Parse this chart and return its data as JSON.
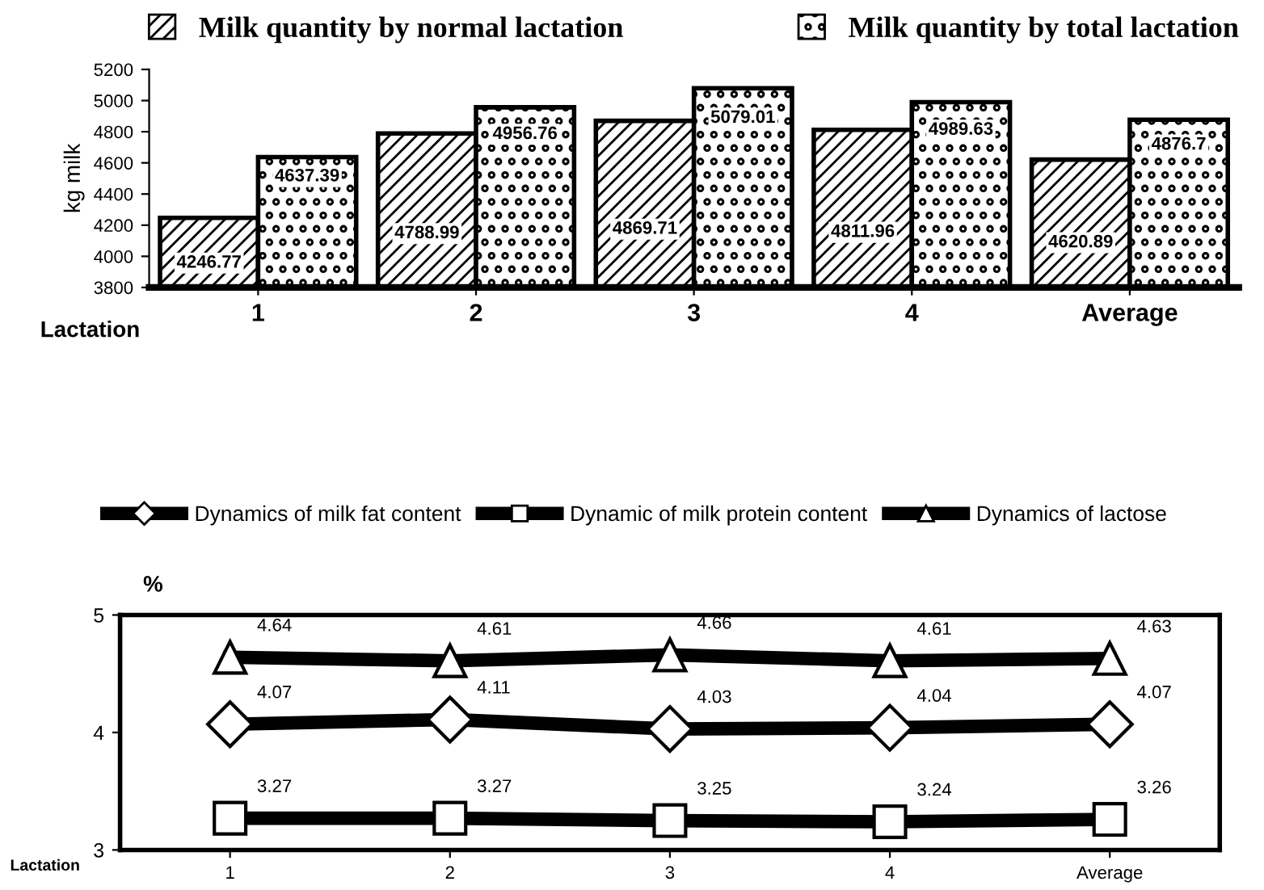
{
  "chart_data": [
    {
      "type": "bar",
      "categories": [
        "1",
        "2",
        "3",
        "4",
        "Average"
      ],
      "xlabel": "Lactation",
      "ylabel": "kg milk",
      "series": [
        {
          "name": "Milk quantity by normal lactation",
          "color": "#000000",
          "values": [
            4246.77,
            4788.99,
            4869.71,
            4811.96,
            4620.89
          ]
        },
        {
          "name": "Milk quantity by total lactation",
          "color": "#000000",
          "values": [
            4637.39,
            4956.76,
            5079.01,
            4989.63,
            4876.7
          ]
        }
      ],
      "ylim": [
        3800,
        5200
      ],
      "yticks": [
        3800,
        4000,
        4200,
        4400,
        4600,
        4800,
        5000,
        5200
      ],
      "data_labels": true,
      "legend": "top",
      "grid": false
    },
    {
      "type": "line",
      "categories": [
        "1",
        "2",
        "3",
        "4",
        "Average"
      ],
      "xlabel": "Lactation",
      "ylabel": "%",
      "series": [
        {
          "name": "Dynamics of milk fat content",
          "color": "#000000",
          "marker": "diamond",
          "values": [
            4.07,
            4.11,
            4.03,
            4.04,
            4.07
          ]
        },
        {
          "name": "Dynamic of milk protein content",
          "color": "#000000",
          "marker": "square",
          "values": [
            3.27,
            3.27,
            3.25,
            3.24,
            3.26
          ]
        },
        {
          "name": "Dynamics of lactose",
          "color": "#000000",
          "marker": "triangle",
          "values": [
            4.64,
            4.61,
            4.66,
            4.61,
            4.63
          ]
        }
      ],
      "ylim": [
        3,
        5
      ],
      "yticks": [
        3,
        4,
        5
      ],
      "data_labels": true,
      "legend": "top",
      "grid": false,
      "line_style": "solid"
    }
  ]
}
